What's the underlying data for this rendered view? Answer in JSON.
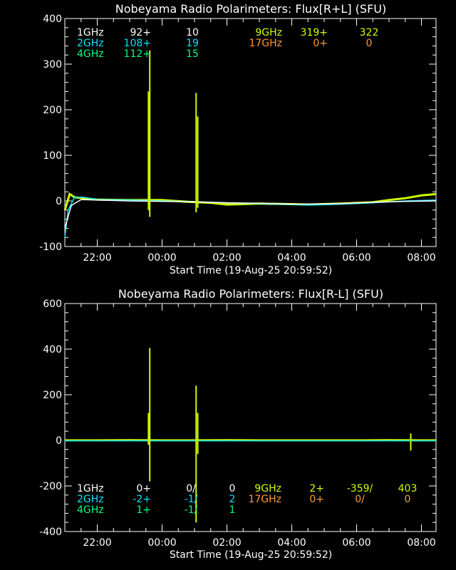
{
  "colors": {
    "background": "#000000",
    "axes": "#ffffff",
    "c1GHz": "#ffffff",
    "c2GHz": "#00e5ff",
    "c4GHz": "#00ff7f",
    "c9GHz": "#ccff00",
    "c17GHz": "#ff9933"
  },
  "chart_data": [
    {
      "type": "line",
      "title": "Nobeyama Radio Polarimeters: Flux[R+L] (SFU)",
      "xlabel": "Start Time (19-Aug-25 20:59:52)",
      "ylabel": "",
      "x_ticks": [
        "22:00",
        "00:00",
        "02:00",
        "04:00",
        "06:00",
        "08:00"
      ],
      "y_ticks": [
        "-100",
        "0",
        "100",
        "200",
        "300",
        "400"
      ],
      "xlim_hours": [
        21.0,
        32.45
      ],
      "ylim": [
        -100,
        400
      ],
      "x_unit": "hours since 19-Aug-25 00:00",
      "legend": {
        "left": [
          {
            "name": "1GHz",
            "v1": "92+",
            "v2": "10",
            "color": "#ffffff"
          },
          {
            "name": "2GHz",
            "v1": "108+",
            "v2": "19",
            "color": "#00e5ff"
          },
          {
            "name": "4GHz",
            "v1": "112+",
            "v2": "15",
            "color": "#00ff7f"
          }
        ],
        "right": [
          {
            "name": "9GHz",
            "v1": "319+",
            "v2": "322",
            "color": "#ccff00"
          },
          {
            "name": "17GHz",
            "v1": "0+",
            "v2": "0",
            "color": "#ff9933"
          }
        ]
      },
      "series": [
        {
          "name": "9GHz",
          "x": [
            21.0,
            21.15,
            21.3,
            22.0,
            23.0,
            24.0,
            24.8,
            25.5,
            26.0,
            27.0,
            28.0,
            28.5,
            29.5,
            30.5,
            31.0,
            31.5,
            32.0,
            32.45
          ],
          "y": [
            -20,
            15,
            8,
            3,
            2,
            2,
            -2,
            -4,
            -8,
            -6,
            -7,
            -8,
            -6,
            -3,
            2,
            6,
            12,
            15
          ]
        },
        {
          "name": "2GHz",
          "x": [
            21.0,
            21.1,
            21.3,
            21.6,
            22.0,
            23.0,
            24.0,
            25.0,
            26.0,
            27.0,
            28.0,
            28.6,
            29.5,
            30.5,
            31.0,
            31.5,
            32.0,
            32.45
          ],
          "y": [
            -80,
            -20,
            8,
            8,
            3,
            2,
            0,
            -2,
            -4,
            -6,
            -8,
            -9,
            -7,
            -4,
            -2,
            0,
            1,
            2
          ]
        },
        {
          "name": "1GHz",
          "x": [
            21.0,
            21.2,
            21.5,
            22.0,
            23.0,
            24.0,
            25.0,
            26.0,
            27.0,
            28.0,
            28.5,
            29.5,
            30.5,
            31.5,
            32.45
          ],
          "y": [
            -60,
            -10,
            3,
            2,
            0,
            -1,
            -2,
            -4,
            -5,
            -7,
            -7,
            -6,
            -3,
            -1,
            0
          ]
        }
      ],
      "spikes": [
        {
          "series": "9GHz",
          "x": 23.62,
          "y_top": 330,
          "y_bottom": -35
        },
        {
          "series": "9GHz",
          "x": 23.58,
          "y_top": 240,
          "y_bottom": -20
        },
        {
          "series": "9GHz",
          "x": 25.05,
          "y_top": 237,
          "y_bottom": -25
        },
        {
          "series": "9GHz",
          "x": 25.1,
          "y_top": 185,
          "y_bottom": -15
        }
      ]
    },
    {
      "type": "line",
      "title": "Nobeyama Radio Polarimeters: Flux[R-L] (SFU)",
      "xlabel": "Start Time (19-Aug-25 20:59:52)",
      "ylabel": "",
      "x_ticks": [
        "22:00",
        "00:00",
        "02:00",
        "04:00",
        "06:00",
        "08:00"
      ],
      "y_ticks": [
        "-400",
        "-200",
        "0",
        "200",
        "400",
        "600"
      ],
      "xlim_hours": [
        21.0,
        32.45
      ],
      "ylim": [
        -400,
        600
      ],
      "x_unit": "hours since 19-Aug-25 00:00",
      "legend": {
        "left": [
          {
            "name": "1GHz",
            "v1": "0+",
            "v2": "0/",
            "v3": "0",
            "color": "#ffffff"
          },
          {
            "name": "2GHz",
            "v1": "-2+",
            "v2": "-1/",
            "v3": "2",
            "color": "#00e5ff"
          },
          {
            "name": "4GHz",
            "v1": "1+",
            "v2": "-1/",
            "v3": "1",
            "color": "#00ff7f"
          }
        ],
        "right": [
          {
            "name": "9GHz",
            "v1": "2+",
            "v2": "-359/",
            "v3": "403",
            "color": "#ccff00"
          },
          {
            "name": "17GHz",
            "v1": "0+",
            "v2": "0/",
            "v3": "0",
            "color": "#ff9933"
          }
        ]
      },
      "series": [
        {
          "name": "9GHz",
          "x": [
            21.0,
            22.0,
            23.0,
            24.0,
            25.0,
            26.0,
            27.0,
            28.0,
            29.0,
            30.0,
            31.0,
            32.0,
            32.45
          ],
          "y": [
            0,
            0,
            1,
            0,
            0,
            1,
            0,
            0,
            0,
            0,
            1,
            0,
            0
          ]
        },
        {
          "name": "2GHz",
          "x": [
            21.0,
            22.0,
            24.0,
            26.0,
            28.0,
            30.0,
            32.45
          ],
          "y": [
            -2,
            -2,
            -2,
            -2,
            -2,
            -2,
            -2
          ]
        }
      ],
      "spikes": [
        {
          "series": "9GHz",
          "x": 23.62,
          "y_top": 405,
          "y_bottom": -180
        },
        {
          "series": "9GHz",
          "x": 23.58,
          "y_top": 120,
          "y_bottom": -20
        },
        {
          "series": "9GHz",
          "x": 25.05,
          "y_top": 240,
          "y_bottom": -360
        },
        {
          "series": "9GHz",
          "x": 25.1,
          "y_top": 120,
          "y_bottom": -60
        },
        {
          "series": "9GHz",
          "x": 31.67,
          "y_top": 30,
          "y_bottom": -45
        }
      ]
    }
  ]
}
